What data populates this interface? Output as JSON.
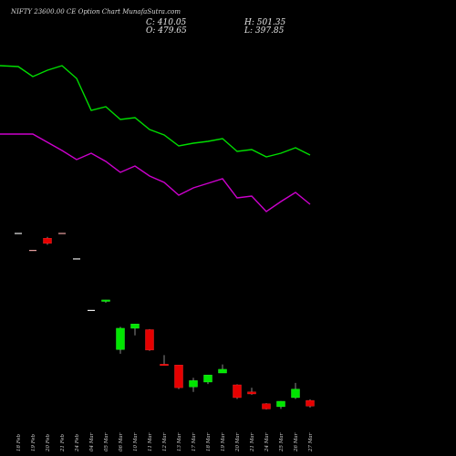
{
  "header": {
    "title": "NIFTY 23600.00  CE Option  Chart  MunafaSutra.com",
    "stats": {
      "c": "C: 410.05",
      "o": "O: 479.65",
      "h": "H: 501.35",
      "l": "L: 397.85"
    }
  },
  "colors": {
    "background": "#000000",
    "up": "#00e600",
    "down": "#e60000",
    "upper_line": "#00dd00",
    "lower_line": "#cc00cc",
    "text": "#e0e0e0"
  },
  "chart_data": {
    "type": "candlestick",
    "title": "NIFTY 23600.00  CE Option  Chart  MunafaSutra.com",
    "x_labels": [
      "18 Feb",
      "19 Feb",
      "20 Feb",
      "21 Feb",
      "24 Feb",
      "04 Mar",
      "05 Mar",
      "06 Mar",
      "10 Mar",
      "11 Mar",
      "12 Mar",
      "13 Mar",
      "17 Mar",
      "18 Mar",
      "19 Mar",
      "20 Mar",
      "21 Mar",
      "24 Mar",
      "25 Mar",
      "26 Mar",
      "27 Mar"
    ],
    "candles": [
      {
        "date": "18 Feb",
        "open": 1120,
        "high": 1120,
        "low": 1120,
        "close": 1120,
        "dir": "up"
      },
      {
        "date": "19 Feb",
        "open": 1060,
        "high": 1060,
        "low": 1060,
        "close": 1060,
        "dir": "down"
      },
      {
        "date": "20 Feb",
        "open": 1103,
        "high": 1108,
        "low": 1080,
        "close": 1085,
        "dir": "down"
      },
      {
        "date": "21 Feb",
        "open": 1120,
        "high": 1120,
        "low": 1120,
        "close": 1120,
        "dir": "down"
      },
      {
        "date": "24 Feb",
        "open": 1030,
        "high": 1030,
        "low": 1030,
        "close": 1030,
        "dir": "up"
      },
      {
        "date": "04 Mar",
        "open": 848,
        "high": 848,
        "low": 848,
        "close": 848,
        "dir": "up"
      },
      {
        "date": "05 Mar",
        "open": 880,
        "high": 885,
        "low": 875,
        "close": 885,
        "dir": "up"
      },
      {
        "date": "06 Mar",
        "open": 710,
        "high": 790,
        "low": 695,
        "close": 785,
        "dir": "up"
      },
      {
        "date": "10 Mar",
        "open": 785,
        "high": 800,
        "low": 760,
        "close": 800,
        "dir": "up"
      },
      {
        "date": "11 Mar",
        "open": 780,
        "high": 782,
        "low": 705,
        "close": 708,
        "dir": "down"
      },
      {
        "date": "12 Mar",
        "open": 658,
        "high": 690,
        "low": 655,
        "close": 655,
        "dir": "down"
      },
      {
        "date": "13 Mar",
        "open": 655,
        "high": 655,
        "low": 570,
        "close": 575,
        "dir": "down"
      },
      {
        "date": "17 Mar",
        "open": 578,
        "high": 610,
        "low": 560,
        "close": 600,
        "dir": "up"
      },
      {
        "date": "18 Mar",
        "open": 595,
        "high": 620,
        "low": 588,
        "close": 620,
        "dir": "up"
      },
      {
        "date": "19 Mar",
        "open": 627,
        "high": 657,
        "low": 627,
        "close": 640,
        "dir": "up"
      },
      {
        "date": "20 Mar",
        "open": 585,
        "high": 587,
        "low": 535,
        "close": 540,
        "dir": "down"
      },
      {
        "date": "21 Mar",
        "open": 560,
        "high": 575,
        "low": 550,
        "close": 553,
        "dir": "down"
      },
      {
        "date": "24 Mar",
        "open": 518,
        "high": 520,
        "low": 498,
        "close": 500,
        "dir": "down"
      },
      {
        "date": "25 Mar",
        "open": 508,
        "high": 528,
        "low": 500,
        "close": 527,
        "dir": "up"
      },
      {
        "date": "26 Mar",
        "open": 540,
        "high": 592,
        "low": 535,
        "close": 570,
        "dir": "up"
      },
      {
        "date": "27 Mar",
        "open": 530,
        "high": 534,
        "low": 505,
        "close": 510,
        "dir": "down"
      }
    ],
    "upper_line": {
      "x_index": [
        -0.8,
        0,
        1,
        2,
        3,
        4,
        5,
        6,
        7,
        8,
        9,
        10,
        11,
        12,
        13,
        14,
        15,
        16,
        17,
        18,
        19,
        20
      ],
      "values": [
        72,
        73,
        84,
        77,
        72,
        86,
        121,
        117,
        131,
        129,
        142,
        148,
        160,
        157,
        155,
        152,
        166,
        164,
        172,
        168,
        162,
        170
      ]
    },
    "lower_line": {
      "x_index": [
        -0.8,
        0,
        1,
        2,
        3,
        4,
        5,
        6,
        7,
        8,
        9,
        10,
        11,
        12,
        13,
        14,
        15,
        16,
        17,
        18,
        19,
        20
      ],
      "values": [
        147,
        147,
        147,
        156,
        165,
        175,
        168,
        177,
        189,
        182,
        193,
        200,
        214,
        206,
        201,
        196,
        217,
        215,
        232,
        221,
        211,
        224
      ]
    },
    "indicator_scale": "inverted",
    "grid": false,
    "legend": "none"
  }
}
